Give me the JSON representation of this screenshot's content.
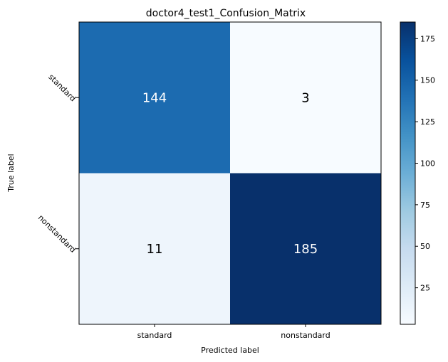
{
  "chart_data": {
    "type": "heatmap",
    "title": "doctor4_test1_Confusion_Matrix",
    "xlabel": "Predicted label",
    "ylabel": "True label",
    "x_categories": [
      "standard",
      "nonstandard"
    ],
    "y_categories": [
      "standard",
      "nonstandard"
    ],
    "matrix": [
      [
        144,
        3
      ],
      [
        11,
        185
      ]
    ],
    "colormap": "Blues",
    "colorbar": {
      "range": [
        3,
        185
      ],
      "ticks": [
        25,
        50,
        75,
        100,
        125,
        150,
        175
      ]
    },
    "grid": false
  }
}
